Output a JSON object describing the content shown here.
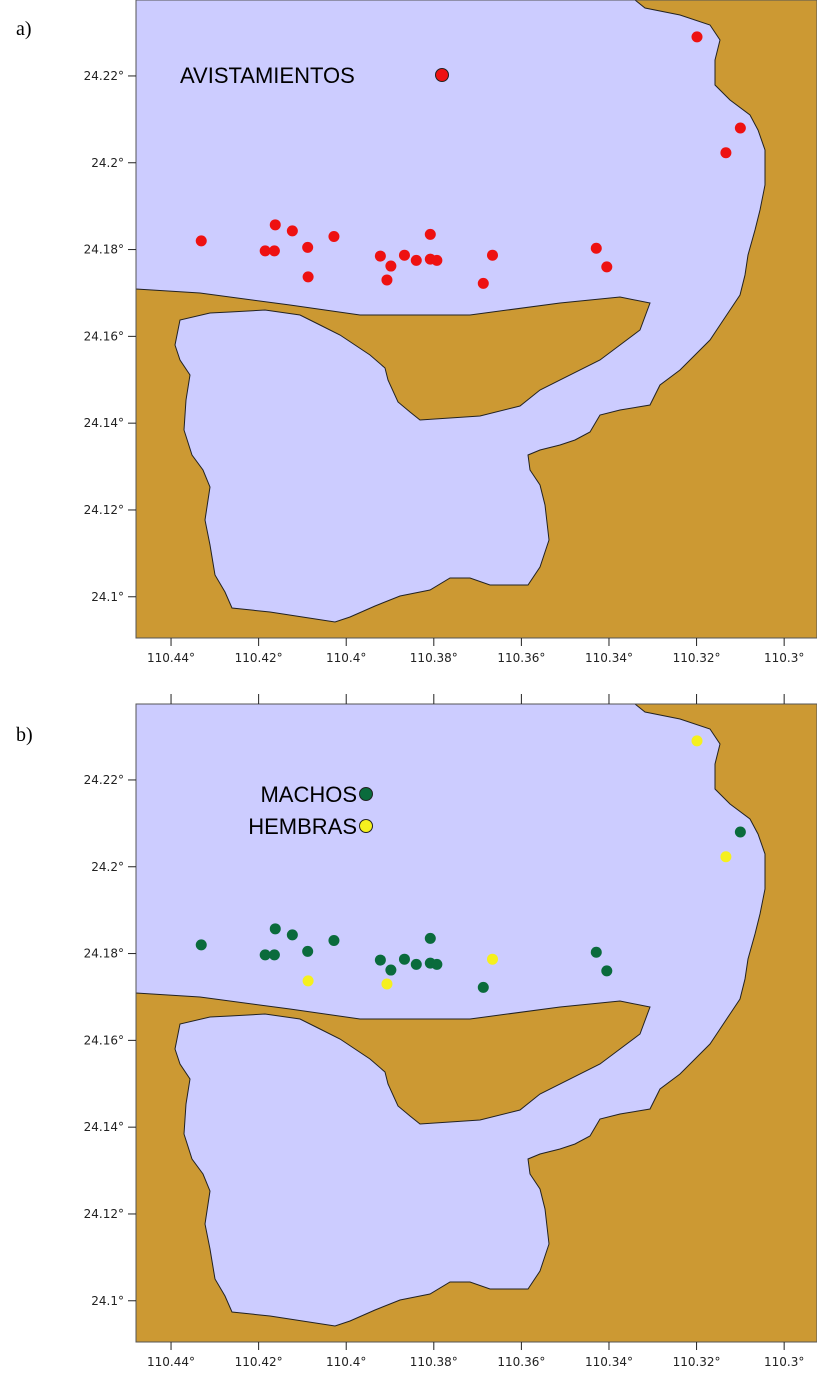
{
  "panels": [
    {
      "label": "a)",
      "legend": [
        {
          "text": "AVISTAMIENTOS",
          "color": "#ee1111"
        }
      ],
      "points": [
        {
          "lon": -110.3199,
          "lat": 24.229,
          "color": "#ee1111"
        },
        {
          "lon": -110.31,
          "lat": 24.208,
          "color": "#ee1111"
        },
        {
          "lon": -110.3133,
          "lat": 24.2023,
          "color": "#ee1111"
        },
        {
          "lon": -110.4331,
          "lat": 24.182,
          "color": "#ee1111"
        },
        {
          "lon": -110.4162,
          "lat": 24.1857,
          "color": "#ee1111"
        },
        {
          "lon": -110.4123,
          "lat": 24.1843,
          "color": "#ee1111"
        },
        {
          "lon": -110.4028,
          "lat": 24.183,
          "color": "#ee1111"
        },
        {
          "lon": -110.4185,
          "lat": 24.1797,
          "color": "#ee1111"
        },
        {
          "lon": -110.4164,
          "lat": 24.1797,
          "color": "#ee1111"
        },
        {
          "lon": -110.4088,
          "lat": 24.1805,
          "color": "#ee1111"
        },
        {
          "lon": -110.4087,
          "lat": 24.1737,
          "color": "#ee1111"
        },
        {
          "lon": -110.3808,
          "lat": 24.1835,
          "color": "#ee1111"
        },
        {
          "lon": -110.3922,
          "lat": 24.1785,
          "color": "#ee1111"
        },
        {
          "lon": -110.3867,
          "lat": 24.1787,
          "color": "#ee1111"
        },
        {
          "lon": -110.384,
          "lat": 24.1775,
          "color": "#ee1111"
        },
        {
          "lon": -110.3808,
          "lat": 24.1778,
          "color": "#ee1111"
        },
        {
          "lon": -110.3793,
          "lat": 24.1775,
          "color": "#ee1111"
        },
        {
          "lon": -110.3898,
          "lat": 24.1762,
          "color": "#ee1111"
        },
        {
          "lon": -110.3907,
          "lat": 24.173,
          "color": "#ee1111"
        },
        {
          "lon": -110.3666,
          "lat": 24.1787,
          "color": "#ee1111"
        },
        {
          "lon": -110.3687,
          "lat": 24.1722,
          "color": "#ee1111"
        },
        {
          "lon": -110.3429,
          "lat": 24.1803,
          "color": "#ee1111"
        },
        {
          "lon": -110.3405,
          "lat": 24.176,
          "color": "#ee1111"
        }
      ]
    },
    {
      "label": "b)",
      "legend": [
        {
          "text": "MACHOS",
          "color": "#0a6b3c"
        },
        {
          "text": "HEMBRAS",
          "color": "#f5f01e"
        }
      ],
      "points": [
        {
          "lon": -110.3199,
          "lat": 24.229,
          "color": "#f5f01e"
        },
        {
          "lon": -110.31,
          "lat": 24.208,
          "color": "#0a6b3c"
        },
        {
          "lon": -110.3133,
          "lat": 24.2023,
          "color": "#f5f01e"
        },
        {
          "lon": -110.4331,
          "lat": 24.182,
          "color": "#0a6b3c"
        },
        {
          "lon": -110.4162,
          "lat": 24.1857,
          "color": "#0a6b3c"
        },
        {
          "lon": -110.4123,
          "lat": 24.1843,
          "color": "#0a6b3c"
        },
        {
          "lon": -110.4028,
          "lat": 24.183,
          "color": "#0a6b3c"
        },
        {
          "lon": -110.4185,
          "lat": 24.1797,
          "color": "#0a6b3c"
        },
        {
          "lon": -110.4164,
          "lat": 24.1797,
          "color": "#0a6b3c"
        },
        {
          "lon": -110.4088,
          "lat": 24.1805,
          "color": "#0a6b3c"
        },
        {
          "lon": -110.4087,
          "lat": 24.1737,
          "color": "#f5f01e"
        },
        {
          "lon": -110.3808,
          "lat": 24.1835,
          "color": "#0a6b3c"
        },
        {
          "lon": -110.3922,
          "lat": 24.1785,
          "color": "#0a6b3c"
        },
        {
          "lon": -110.3867,
          "lat": 24.1787,
          "color": "#0a6b3c"
        },
        {
          "lon": -110.384,
          "lat": 24.1775,
          "color": "#0a6b3c"
        },
        {
          "lon": -110.3808,
          "lat": 24.1778,
          "color": "#0a6b3c"
        },
        {
          "lon": -110.3793,
          "lat": 24.1775,
          "color": "#0a6b3c"
        },
        {
          "lon": -110.3898,
          "lat": 24.1762,
          "color": "#0a6b3c"
        },
        {
          "lon": -110.3907,
          "lat": 24.173,
          "color": "#f5f01e"
        },
        {
          "lon": -110.3666,
          "lat": 24.1787,
          "color": "#f5f01e"
        },
        {
          "lon": -110.3687,
          "lat": 24.1722,
          "color": "#0a6b3c"
        },
        {
          "lon": -110.3429,
          "lat": 24.1803,
          "color": "#0a6b3c"
        },
        {
          "lon": -110.3405,
          "lat": 24.176,
          "color": "#0a6b3c"
        }
      ]
    }
  ],
  "x_ticks": [
    "110.44°",
    "110.42°",
    "110.4°",
    "110.38°",
    "110.36°",
    "110.34°",
    "110.32°",
    "110.3°"
  ],
  "y_ticks": [
    "24.22°",
    "24.2°",
    "24.18°",
    "24.16°",
    "24.14°",
    "24.12°",
    "24.1°"
  ],
  "colors": {
    "water": "#ccccff",
    "land": "#cc9933",
    "coastline": "#222222"
  }
}
